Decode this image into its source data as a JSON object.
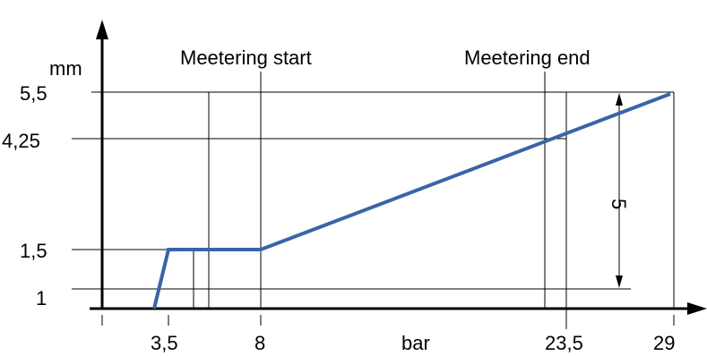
{
  "chart_data": {
    "type": "line",
    "xlabel": "bar",
    "ylabel": "mm",
    "x_ticks": [
      "3,5",
      "8",
      "23,5",
      "29"
    ],
    "y_ticks": [
      "5,5",
      "4,25",
      "1,5",
      "1"
    ],
    "annotations": {
      "metering_start": "Meetering start",
      "metering_end": "Meetering end",
      "span": "5"
    },
    "series": [
      {
        "values": [
          [
            3.0,
            0.6
          ],
          [
            3.5,
            1.5
          ],
          [
            8,
            1.5
          ],
          [
            29,
            5.5
          ]
        ]
      }
    ],
    "colors": {
      "series": "#3a64a8",
      "axis": "#000000",
      "grid": "#000000"
    }
  }
}
